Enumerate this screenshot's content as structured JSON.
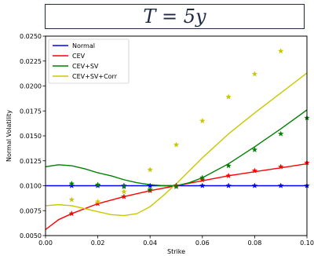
{
  "chart_data": {
    "type": "line",
    "title": "T = 5y",
    "xlabel": "Strike",
    "ylabel": "Normal Volatility",
    "xlim": [
      0.0,
      0.1
    ],
    "ylim": [
      0.005,
      0.025
    ],
    "xticks": [
      0.0,
      0.02,
      0.04,
      0.06,
      0.08,
      0.1
    ],
    "xtick_labels": [
      "0.00",
      "0.02",
      "0.04",
      "0.06",
      "0.08",
      "0.10"
    ],
    "yticks": [
      0.005,
      0.0075,
      0.01,
      0.0125,
      0.015,
      0.0175,
      0.02,
      0.0225,
      0.025
    ],
    "ytick_labels": [
      "0.0050",
      "0.0075",
      "0.0100",
      "0.0125",
      "0.0150",
      "0.0175",
      "0.0200",
      "0.0225",
      "0.0250"
    ],
    "legend_position": "top-left",
    "series": [
      {
        "name": "Normal",
        "color": "#0000ff",
        "line": {
          "x": [
            0.0,
            0.1
          ],
          "y": [
            0.01,
            0.01
          ]
        },
        "markers": {
          "x": [
            0.01,
            0.02,
            0.03,
            0.04,
            0.05,
            0.06,
            0.07,
            0.08,
            0.09,
            0.1
          ],
          "y": [
            0.01,
            0.01,
            0.01,
            0.01,
            0.01,
            0.01,
            0.01,
            0.01,
            0.01,
            0.01
          ]
        }
      },
      {
        "name": "CEV",
        "color": "#ff0000",
        "line": {
          "x": [
            0.0,
            0.005,
            0.01,
            0.02,
            0.03,
            0.04,
            0.05,
            0.06,
            0.07,
            0.08,
            0.09,
            0.1
          ],
          "y": [
            0.0056,
            0.0066,
            0.0072,
            0.0082,
            0.0089,
            0.0095,
            0.01,
            0.0105,
            0.011,
            0.0114,
            0.0118,
            0.0122
          ]
        },
        "markers": {
          "x": [
            0.01,
            0.02,
            0.03,
            0.04,
            0.05,
            0.06,
            0.07,
            0.08,
            0.09,
            0.1
          ],
          "y": [
            0.0072,
            0.0082,
            0.0089,
            0.0095,
            0.01,
            0.0106,
            0.011,
            0.0115,
            0.0119,
            0.0123
          ]
        }
      },
      {
        "name": "CEV+SV",
        "color": "#008000",
        "line": {
          "x": [
            0.0,
            0.005,
            0.01,
            0.015,
            0.02,
            0.025,
            0.03,
            0.035,
            0.04,
            0.045,
            0.05,
            0.055,
            0.06,
            0.07,
            0.08,
            0.09,
            0.1
          ],
          "y": [
            0.0119,
            0.0121,
            0.012,
            0.0117,
            0.0113,
            0.011,
            0.0106,
            0.0103,
            0.0101,
            0.01,
            0.01,
            0.0103,
            0.0108,
            0.0122,
            0.0139,
            0.0157,
            0.0176
          ]
        },
        "markers": {
          "x": [
            0.01,
            0.02,
            0.03,
            0.04,
            0.05,
            0.06,
            0.07,
            0.08,
            0.09,
            0.1
          ],
          "y": [
            0.0102,
            0.0101,
            0.0099,
            0.0096,
            0.0099,
            0.0108,
            0.012,
            0.0136,
            0.0152,
            0.0168
          ]
        }
      },
      {
        "name": "CEV+SV+Corr",
        "color": "#c8c800",
        "line": {
          "x": [
            0.0,
            0.005,
            0.01,
            0.015,
            0.02,
            0.025,
            0.03,
            0.035,
            0.04,
            0.045,
            0.05,
            0.055,
            0.06,
            0.07,
            0.08,
            0.09,
            0.1
          ],
          "y": [
            0.008,
            0.0081,
            0.008,
            0.0077,
            0.0074,
            0.0071,
            0.007,
            0.0072,
            0.0079,
            0.009,
            0.0102,
            0.0115,
            0.0128,
            0.0152,
            0.0173,
            0.0193,
            0.0213
          ]
        },
        "markers": {
          "x": [
            0.01,
            0.02,
            0.03,
            0.04,
            0.05,
            0.06,
            0.07,
            0.08,
            0.09,
            0.1
          ],
          "y": [
            0.0086,
            0.0084,
            0.0094,
            0.0116,
            0.0141,
            0.0165,
            0.0189,
            0.0212,
            0.0235,
            null
          ]
        }
      }
    ]
  }
}
